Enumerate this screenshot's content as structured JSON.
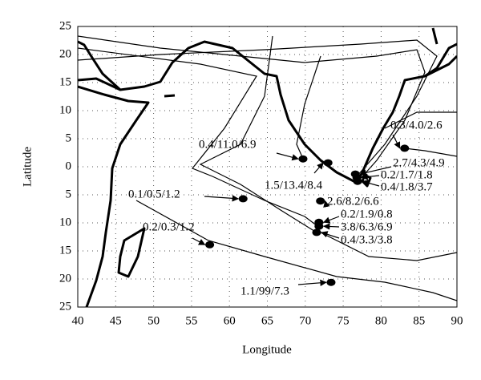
{
  "chart_data": {
    "type": "scatter",
    "xlabel": "Longitude",
    "ylabel": "Latitude",
    "xlim": [
      40,
      90
    ],
    "xticks": [
      40,
      45,
      50,
      55,
      60,
      65,
      70,
      75,
      80,
      85,
      90
    ],
    "ylim": [
      -25,
      25
    ],
    "yticks": [
      {
        "value": -25,
        "label": "25"
      },
      {
        "value": -20,
        "label": "20"
      },
      {
        "value": -15,
        "label": "15"
      },
      {
        "value": -10,
        "label": "10"
      },
      {
        "value": -5,
        "label": "5"
      },
      0,
      5,
      10,
      15,
      20,
      25
    ],
    "grid": true,
    "color": "#000000",
    "x": [
      83.1,
      69.7,
      73.0,
      76.6,
      76.8,
      76.9,
      61.8,
      72.0,
      71.8,
      71.8,
      71.5,
      57.4,
      73.4
    ],
    "values": [
      3.3,
      1.4,
      0.7,
      -1.3,
      -1.9,
      -2.6,
      -5.7,
      -6.1,
      -9.9,
      -10.6,
      -11.7,
      -13.9,
      -20.6
    ],
    "annotations": [
      "0.3/4.0/2.6",
      "0.4/11.0/6.9",
      "1.5/13.4/8.4",
      "2.7/4.3/4.9",
      "0.2/1.7/1.8",
      "0.4/1.8/3.7",
      "0.1/0.5/1.2",
      "2.6/8.2/6.6",
      "0.2/1.9/0.8",
      "3.8/6.3/6.9",
      "0.4/3.3/3.8",
      "0.2/0.3/1.2",
      "1.1/99/7.3"
    ]
  }
}
